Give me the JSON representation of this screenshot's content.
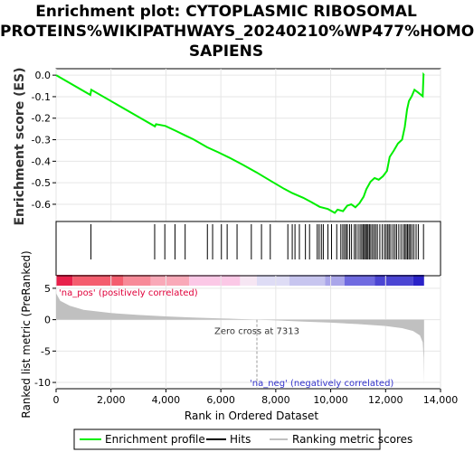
{
  "title": "Enrichment plot: CYTOPLASMIC RIBOSOMAL\nPROTEINS%WIKIPATHWAYS_20240210%WP477%HOMO\nSAPIENS",
  "colors": {
    "profile": "#00ee00",
    "hits": "#000000",
    "metric_fill": "#c0c0c0",
    "pos_label": "#e0003a",
    "neg_label": "#3333cc",
    "zero_line": "#999999"
  },
  "chart_data": {
    "type": "line",
    "x_range": [
      0,
      14000
    ],
    "x_ticks": [
      0,
      2000,
      4000,
      6000,
      8000,
      10000,
      12000,
      14000
    ],
    "x_tick_labels": [
      "0",
      "2,000",
      "4,000",
      "6,000",
      "8,000",
      "10,000",
      "12,000",
      "14,000"
    ],
    "xlabel": "Rank in Ordered Dataset",
    "n_genes": 13400,
    "es_panel": {
      "ylabel": "Enrichment score (ES)",
      "ylim": [
        -0.68,
        0.03
      ],
      "y_ticks": [
        0.0,
        -0.1,
        -0.2,
        -0.3,
        -0.4,
        -0.5,
        -0.6
      ],
      "y_tick_labels": [
        "0.0",
        "-0.1",
        "-0.2",
        "-0.3",
        "-0.4",
        "-0.5",
        "-0.6"
      ],
      "profile": [
        [
          0,
          0.0
        ],
        [
          1250,
          -0.092
        ],
        [
          1280,
          -0.068
        ],
        [
          3600,
          -0.238
        ],
        [
          3640,
          -0.228
        ],
        [
          3980,
          -0.236
        ],
        [
          4350,
          -0.258
        ],
        [
          4700,
          -0.28
        ],
        [
          5000,
          -0.298
        ],
        [
          5500,
          -0.335
        ],
        [
          5900,
          -0.358
        ],
        [
          6300,
          -0.383
        ],
        [
          6800,
          -0.416
        ],
        [
          7300,
          -0.452
        ],
        [
          7800,
          -0.49
        ],
        [
          8300,
          -0.528
        ],
        [
          8600,
          -0.548
        ],
        [
          9000,
          -0.57
        ],
        [
          9300,
          -0.59
        ],
        [
          9600,
          -0.612
        ],
        [
          9900,
          -0.622
        ],
        [
          10150,
          -0.64
        ],
        [
          10250,
          -0.625
        ],
        [
          10450,
          -0.632
        ],
        [
          10600,
          -0.607
        ],
        [
          10750,
          -0.6
        ],
        [
          10900,
          -0.614
        ],
        [
          11050,
          -0.595
        ],
        [
          11200,
          -0.565
        ],
        [
          11300,
          -0.53
        ],
        [
          11450,
          -0.495
        ],
        [
          11600,
          -0.478
        ],
        [
          11750,
          -0.486
        ],
        [
          11900,
          -0.47
        ],
        [
          12050,
          -0.445
        ],
        [
          12150,
          -0.38
        ],
        [
          12300,
          -0.35
        ],
        [
          12450,
          -0.318
        ],
        [
          12600,
          -0.3
        ],
        [
          12700,
          -0.24
        ],
        [
          12780,
          -0.16
        ],
        [
          12850,
          -0.12
        ],
        [
          12950,
          -0.098
        ],
        [
          13050,
          -0.068
        ],
        [
          13200,
          -0.082
        ],
        [
          13350,
          -0.098
        ],
        [
          13380,
          0.003
        ],
        [
          13400,
          0.0
        ]
      ]
    },
    "hit_ranks": [
      1270,
      3590,
      3960,
      4330,
      4700,
      5510,
      5700,
      6020,
      6230,
      6590,
      7110,
      7480,
      7800,
      8440,
      8600,
      8700,
      8860,
      9080,
      9230,
      9510,
      9580,
      9660,
      9730,
      9900,
      10030,
      10220,
      10370,
      10440,
      10500,
      10560,
      10610,
      10690,
      10760,
      10860,
      10920,
      11000,
      11070,
      11130,
      11180,
      11230,
      11270,
      11320,
      11360,
      11410,
      11460,
      11520,
      11580,
      11640,
      11700,
      11790,
      11880,
      11960,
      12020,
      12080,
      12130,
      12190,
      12270,
      12340,
      12400,
      12480,
      12560,
      12640,
      12700,
      12750,
      12800,
      12850,
      12900,
      12960,
      13030,
      13110,
      13190,
      13380
    ],
    "metric_panel": {
      "ylabel": "Ranked list metric (PreRanked)",
      "ylim": [
        -11,
        7
      ],
      "y_ticks": [
        5,
        0,
        -5,
        -10
      ],
      "y_tick_labels": [
        "5",
        "0",
        "-5",
        "-10"
      ],
      "curve": [
        [
          0,
          4.2
        ],
        [
          150,
          3.0
        ],
        [
          500,
          2.2
        ],
        [
          1000,
          1.55
        ],
        [
          2000,
          1.05
        ],
        [
          3000,
          0.75
        ],
        [
          4000,
          0.52
        ],
        [
          5000,
          0.35
        ],
        [
          6000,
          0.2
        ],
        [
          7000,
          0.06
        ],
        [
          7313,
          0.0
        ],
        [
          8000,
          -0.12
        ],
        [
          9000,
          -0.3
        ],
        [
          10000,
          -0.48
        ],
        [
          11000,
          -0.7
        ],
        [
          12000,
          -1.0
        ],
        [
          12600,
          -1.35
        ],
        [
          13000,
          -1.8
        ],
        [
          13250,
          -2.5
        ],
        [
          13350,
          -3.6
        ],
        [
          13385,
          -6.0
        ],
        [
          13400,
          -10.3
        ]
      ],
      "zero_cross_rank": 7313,
      "zero_cross_label": "Zero cross at 7313",
      "pos_label": "'na_pos' (positively correlated)",
      "neg_label": "'na_neg' (negatively correlated)"
    },
    "legend": {
      "placement": "bottom",
      "items": [
        {
          "label": "Enrichment profile",
          "color": "#00ee00"
        },
        {
          "label": "Hits",
          "color": "#000000"
        },
        {
          "label": "Ranking metric scores",
          "color": "#c0c0c0"
        }
      ]
    }
  }
}
